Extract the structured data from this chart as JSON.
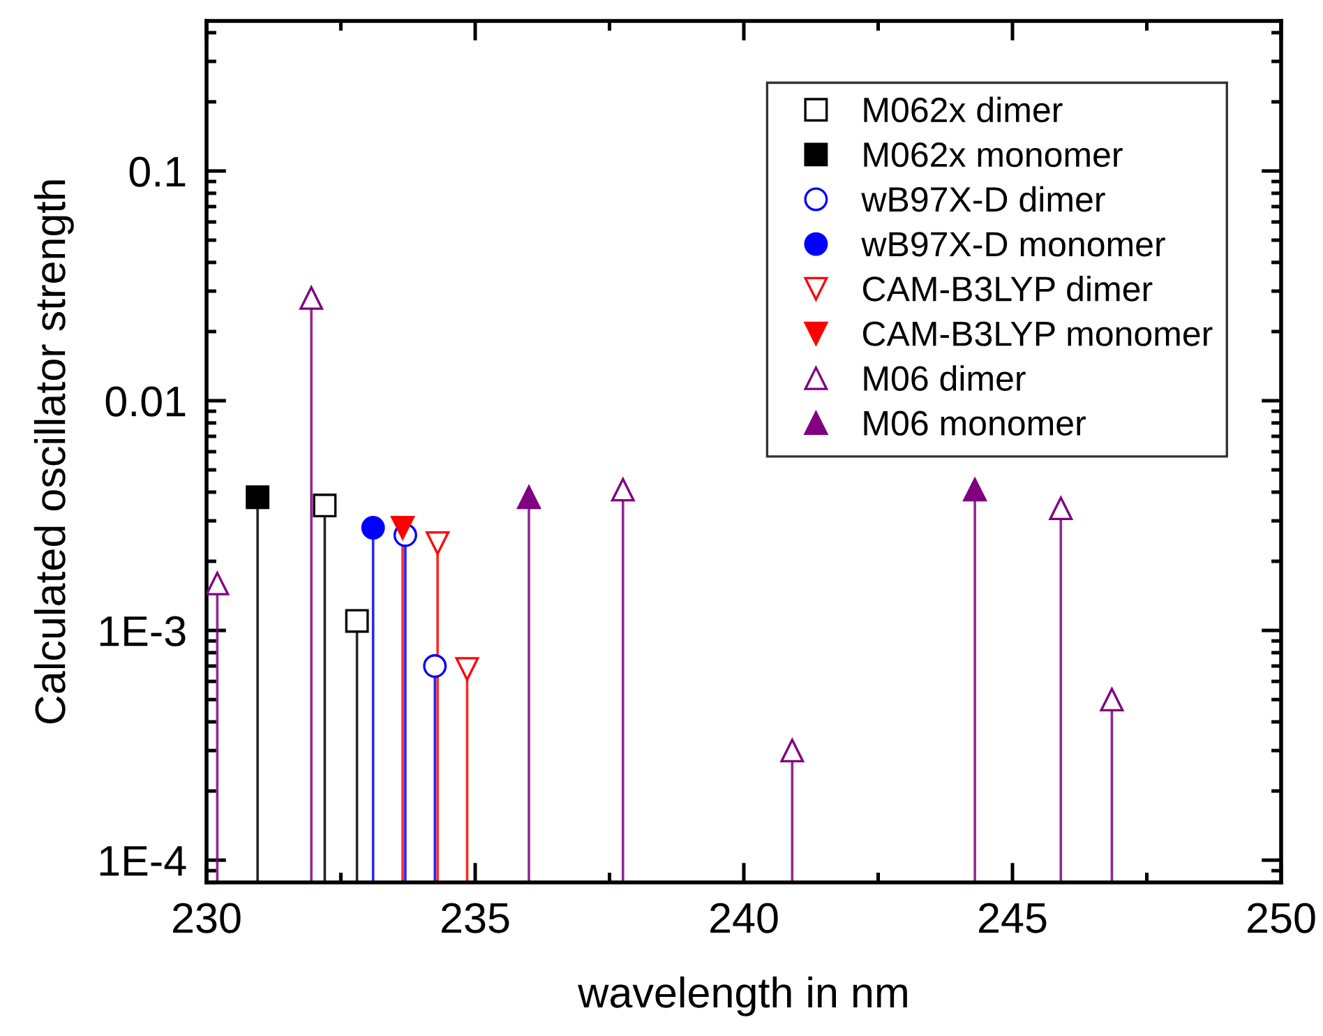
{
  "chart_data": {
    "type": "lollipop",
    "xlabel": "wavelength in nm",
    "ylabel": "Calculated oscillator strength",
    "log": "y",
    "grid": false,
    "legend": "top right",
    "xlim": [
      230,
      250
    ],
    "xticks": [
      230,
      235,
      240,
      245,
      250
    ],
    "ylim": [
      8e-05,
      0.45
    ],
    "yticks": [
      {
        "value": 0.0001,
        "label": "1E-4"
      },
      {
        "value": 0.001,
        "label": "1E-3"
      },
      0.01,
      0.1
    ],
    "series": [
      {
        "name": "M062x dimer",
        "color": "#000000",
        "marker": "square-open",
        "x": [
          232.2,
          232.8
        ],
        "values": [
          0.0035,
          0.0011
        ]
      },
      {
        "name": "M062x monomer",
        "color": "#000000",
        "marker": "square",
        "x": [
          230.95
        ],
        "values": [
          0.0038
        ]
      },
      {
        "name": "wB97X-D dimer",
        "color": "#0000ff",
        "marker": "circle-open",
        "x": [
          233.7,
          234.25
        ],
        "values": [
          0.0026,
          0.0007
        ]
      },
      {
        "name": "wB97X-D monomer",
        "color": "#0000ff",
        "marker": "circle",
        "x": [
          233.1
        ],
        "values": [
          0.0028
        ]
      },
      {
        "name": "CAM-B3LYP dimer",
        "color": "#ff0000",
        "marker": "triangle-down-open",
        "x": [
          234.3,
          234.85
        ],
        "values": [
          0.0024,
          0.00068
        ]
      },
      {
        "name": "CAM-B3LYP monomer",
        "color": "#ff0000",
        "marker": "triangle-down",
        "x": [
          233.65
        ],
        "values": [
          0.0028
        ]
      },
      {
        "name": "M06 dimer",
        "color": "#800080",
        "marker": "triangle-open",
        "x": [
          230.2,
          231.95,
          237.75,
          240.9,
          245.9,
          246.85
        ],
        "values": [
          0.0016,
          0.028,
          0.0041,
          0.0003,
          0.0034,
          0.0005
        ]
      },
      {
        "name": "M06 monomer",
        "color": "#800080",
        "marker": "triangle",
        "x": [
          236.0,
          244.3
        ],
        "values": [
          0.0038,
          0.0041
        ]
      }
    ]
  }
}
